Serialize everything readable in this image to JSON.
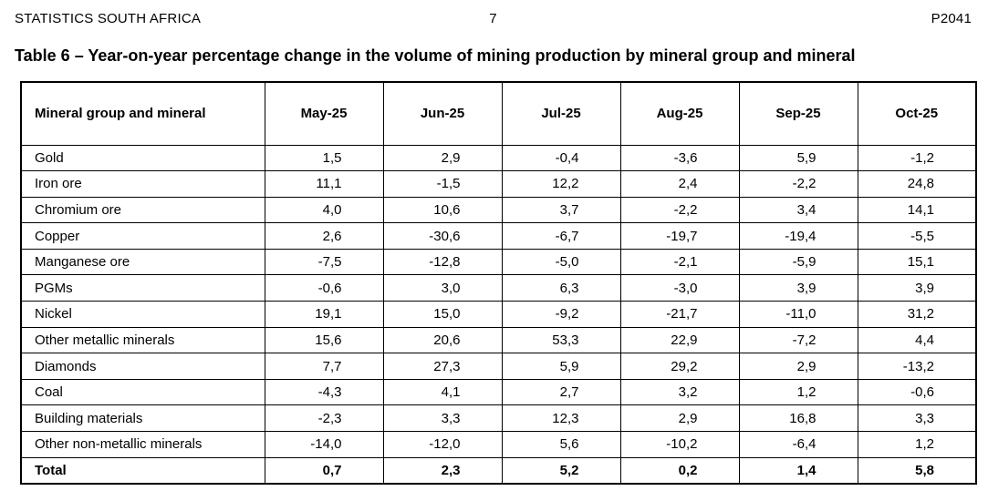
{
  "page_header": {
    "organization": "STATISTICS SOUTH AFRICA",
    "page_number": "7",
    "publication_code": "P2041"
  },
  "title": "Table 6 – Year-on-year percentage change in the volume of mining production by mineral group and mineral",
  "colors": {
    "text": "#000000",
    "border": "#000000",
    "background": "#ffffff"
  },
  "table": {
    "row_header_label": "Mineral group and mineral",
    "columns": [
      "May-25",
      "Jun-25",
      "Jul-25",
      "Aug-25",
      "Sep-25",
      "Oct-25"
    ],
    "rows": [
      {
        "label": "Gold",
        "values": [
          "1,5",
          "2,9",
          "-0,4",
          "-3,6",
          "5,9",
          "-1,2"
        ]
      },
      {
        "label": "Iron ore",
        "values": [
          "11,1",
          "-1,5",
          "12,2",
          "2,4",
          "-2,2",
          "24,8"
        ]
      },
      {
        "label": "Chromium ore",
        "values": [
          "4,0",
          "10,6",
          "3,7",
          "-2,2",
          "3,4",
          "14,1"
        ]
      },
      {
        "label": "Copper",
        "values": [
          "2,6",
          "-30,6",
          "-6,7",
          "-19,7",
          "-19,4",
          "-5,5"
        ]
      },
      {
        "label": "Manganese ore",
        "values": [
          "-7,5",
          "-12,8",
          "-5,0",
          "-2,1",
          "-5,9",
          "15,1"
        ]
      },
      {
        "label": "PGMs",
        "values": [
          "-0,6",
          "3,0",
          "6,3",
          "-3,0",
          "3,9",
          "3,9"
        ]
      },
      {
        "label": "Nickel",
        "values": [
          "19,1",
          "15,0",
          "-9,2",
          "-21,7",
          "-11,0",
          "31,2"
        ]
      },
      {
        "label": "Other metallic minerals",
        "values": [
          "15,6",
          "20,6",
          "53,3",
          "22,9",
          "-7,2",
          "4,4"
        ]
      },
      {
        "label": "Diamonds",
        "values": [
          "7,7",
          "27,3",
          "5,9",
          "29,2",
          "2,9",
          "-13,2"
        ]
      },
      {
        "label": "Coal",
        "values": [
          "-4,3",
          "4,1",
          "2,7",
          "3,2",
          "1,2",
          "-0,6"
        ]
      },
      {
        "label": "Building materials",
        "values": [
          "-2,3",
          "3,3",
          "12,3",
          "2,9",
          "16,8",
          "3,3"
        ]
      },
      {
        "label": "Other non-metallic minerals",
        "values": [
          "-14,0",
          "-12,0",
          "5,6",
          "-10,2",
          "-6,4",
          "1,2"
        ]
      },
      {
        "label": "Total",
        "values": [
          "0,7",
          "2,3",
          "5,2",
          "0,2",
          "1,4",
          "5,8"
        ],
        "is_total": true
      }
    ]
  }
}
